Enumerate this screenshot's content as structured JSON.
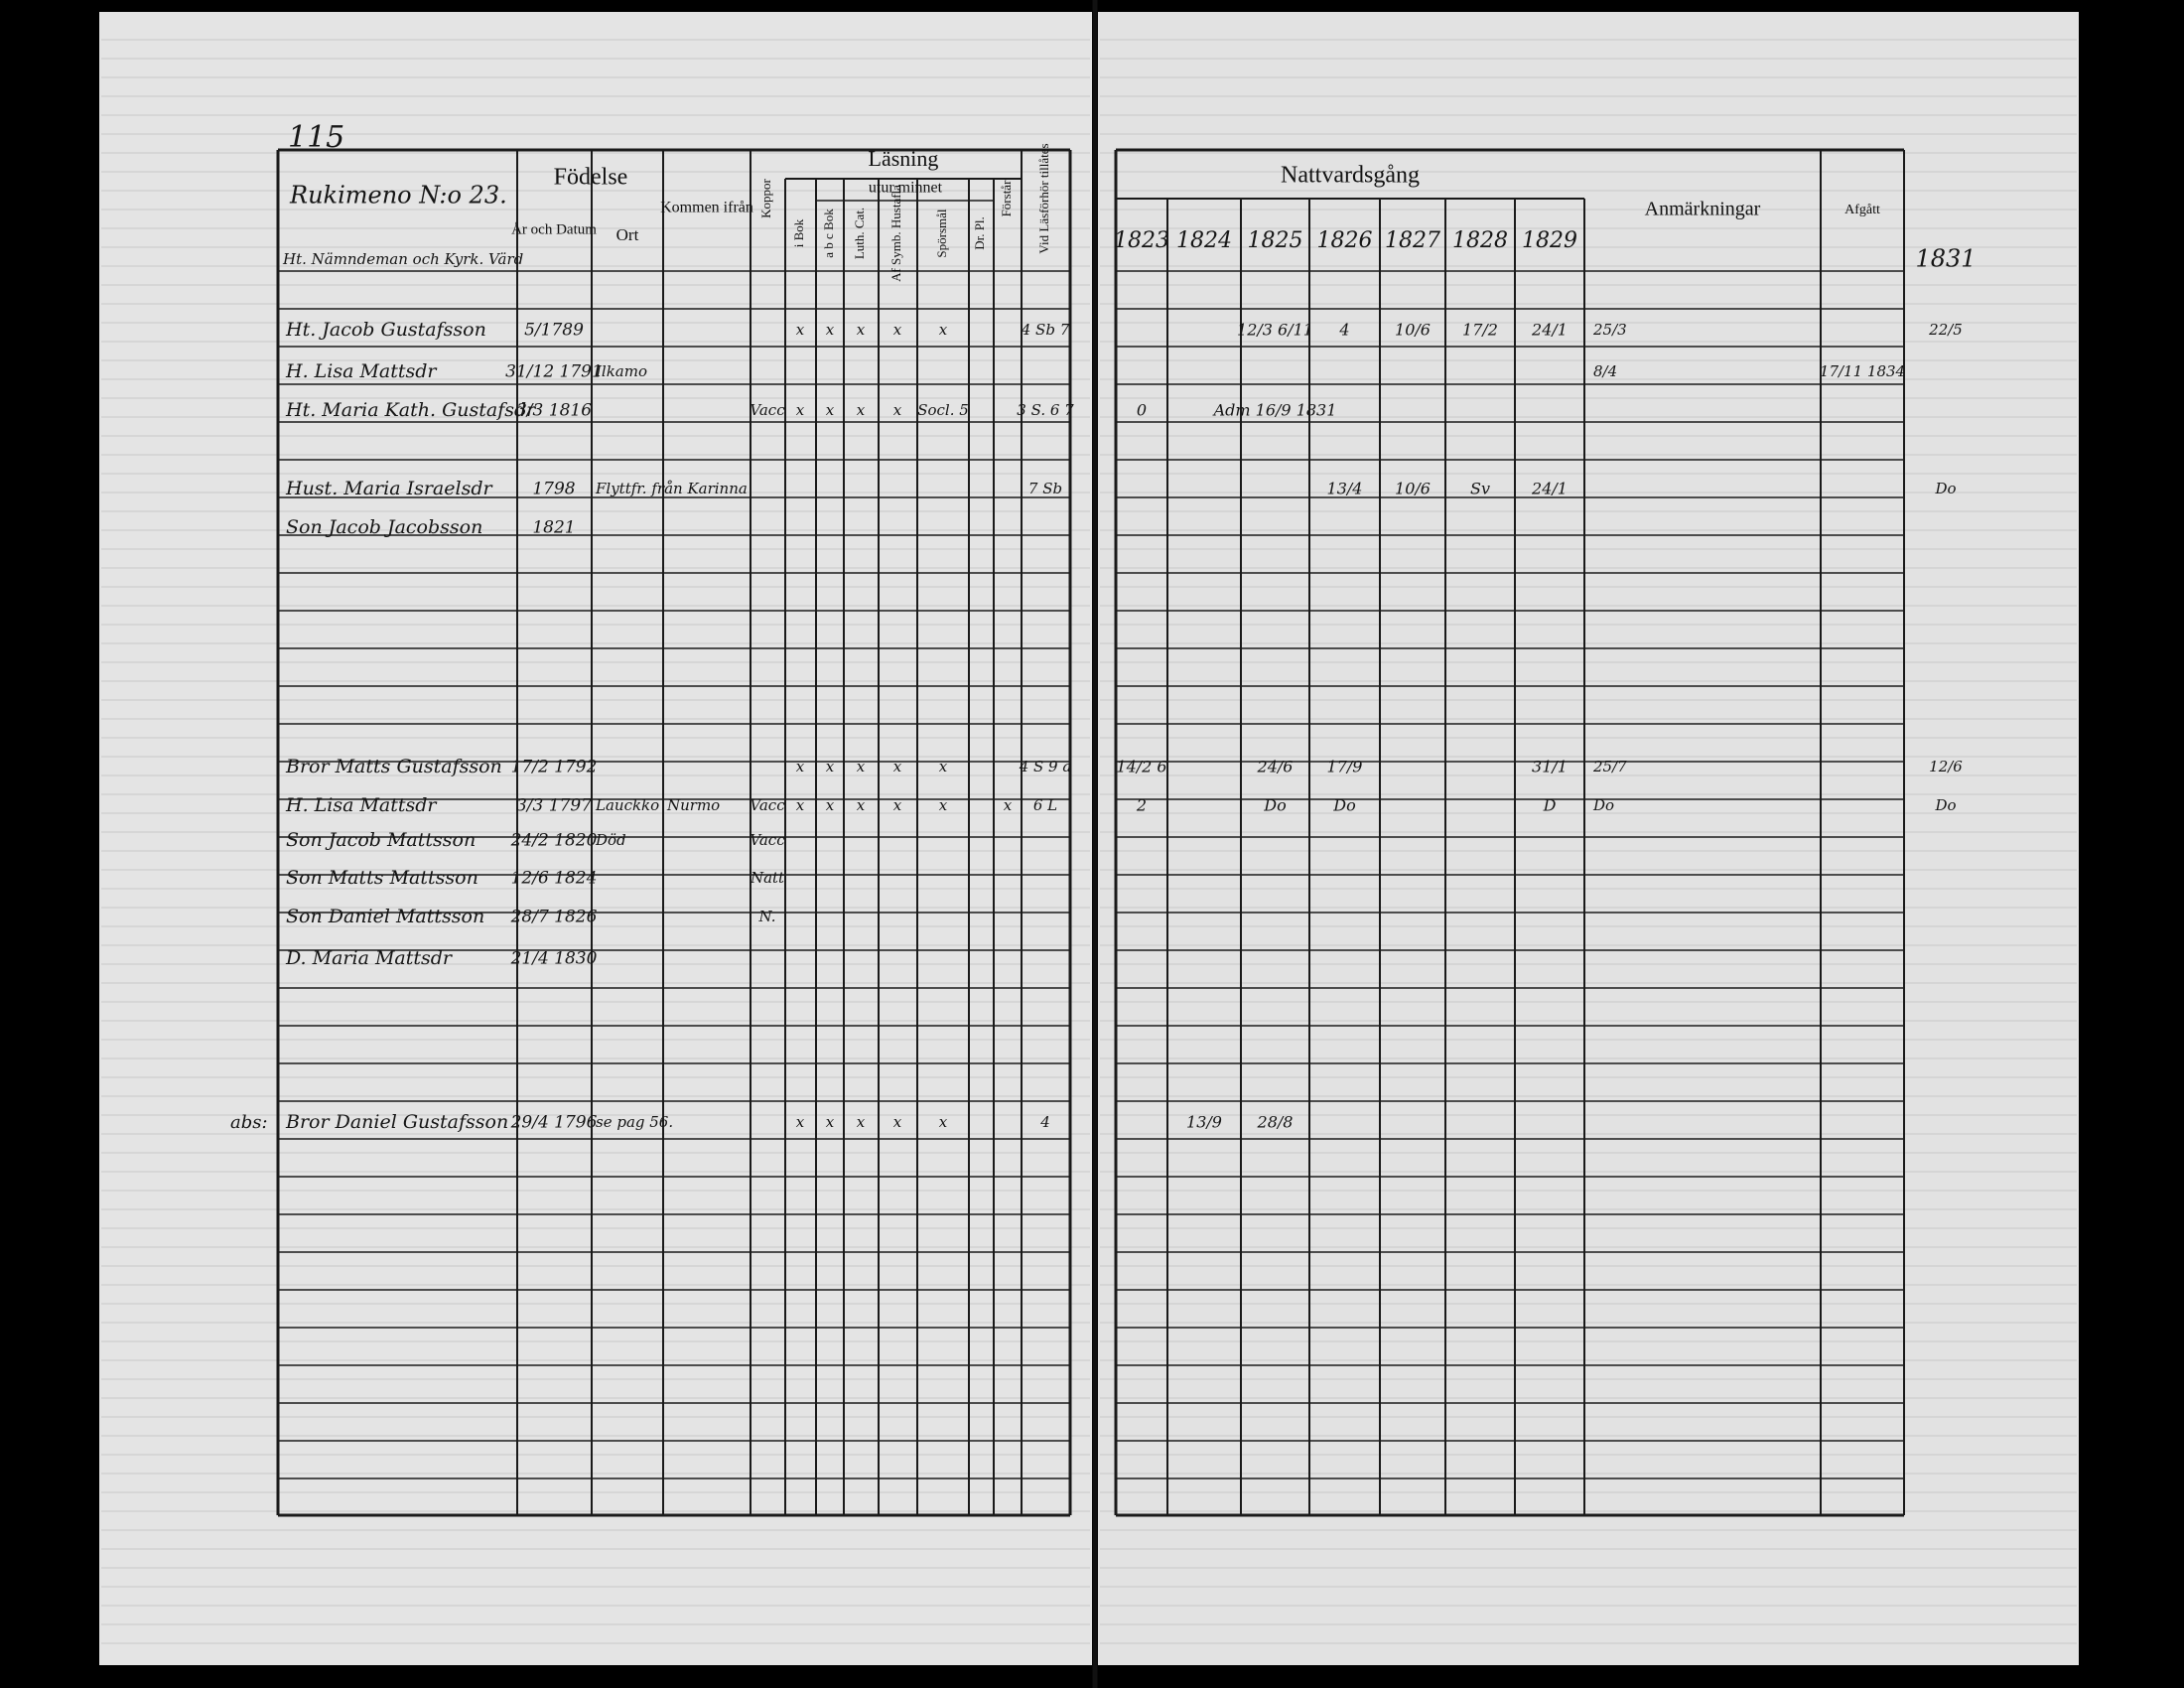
{
  "page_number": "115",
  "household": {
    "title": "Rukimeno N:o 23.",
    "subtitle": "Ht. Nämndeman och Kyrk. Värd"
  },
  "headers": {
    "birth": "Födelse",
    "birth_date": "År och Datum",
    "birth_place": "Ort",
    "origin": "Kommen ifrån",
    "pox": "Koppor",
    "reading": "Läsning",
    "by_heart": "utur minnet",
    "in_book": "i Bok",
    "abc": "a b c Bok",
    "catechism": "Luth. Cat.",
    "hustafla": "Af Symb. Hustafla",
    "questions": "Spörsmål",
    "plans": "Dr. Pl.",
    "understands": "Förstår",
    "allowed": "Vid Läsförhör tillåtes",
    "communion": "Nattvardsgång",
    "years": [
      "1823",
      "1824",
      "1825",
      "1826",
      "1827",
      "1828",
      "1829"
    ],
    "notes": "Anmärkningar",
    "departed": "Afgått",
    "margin_year": "1831"
  },
  "rows": [
    {
      "name": "Ht. Jacob Gustafsson",
      "birth": "5/1789",
      "in_book": "x",
      "abc": "x",
      "catechism": "x",
      "hustafla": "x",
      "questions": "x",
      "allowed": "4 Sb 7",
      "communion": {
        "1825": "12/3 6/11",
        "1826": "4",
        "1827": "10/6",
        "1828": "17/2",
        "1829": "24/1"
      },
      "notes": "25/3",
      "margin": "22/5"
    },
    {
      "name": "H. Lisa Mattsdr",
      "birth": "31/12 1791",
      "place": "Ilkamo",
      "notes": "8/4",
      "departed": "17/11 1834"
    },
    {
      "name": "Ht. Maria Kath. Gustafsdr",
      "birth": "3/3 1816",
      "pox": "Vacc",
      "in_book": "x",
      "abc": "x",
      "catechism": "x",
      "hustafla": "x",
      "questions": "Socl. 5",
      "allowed": "3 S. 6 7",
      "communion": {
        "1823": "0",
        "1825": "Adm 16/9 1831"
      }
    },
    {
      "name": "Hust. Maria Israelsdr",
      "birth": "1798",
      "place": "Flyttfr. från Karinna",
      "allowed": "7 Sb",
      "communion": {
        "1826": "13/4",
        "1827": "10/6",
        "1828": "Sv",
        "1829": "24/1"
      },
      "margin": "Do"
    },
    {
      "name": "Son Jacob Jacobsson",
      "birth": "1821"
    },
    {
      "name": "Bror Matts Gustafsson",
      "birth": "17/2 1792",
      "in_book": "x",
      "abc": "x",
      "catechism": "x",
      "hustafla": "x",
      "questions": "x",
      "allowed": "4 S 9 a",
      "communion": {
        "1823": "14/2 6",
        "1825": "24/6",
        "1826": "17/9",
        "1829": "31/1"
      },
      "notes": "25/7",
      "margin": "12/6"
    },
    {
      "name": "H. Lisa Mattsdr",
      "birth": "3/3 1797",
      "place": "Lauckko",
      "origin": "Nurmo",
      "pox": "Vacc",
      "in_book": "x",
      "abc": "x",
      "catechism": "x",
      "hustafla": "x",
      "questions": "x",
      "understands": "x",
      "allowed": "6 L",
      "communion": {
        "1823": "2",
        "1825": "Do",
        "1826": "Do",
        "1829": "D"
      },
      "notes": "Do",
      "margin": "Do"
    },
    {
      "name": "Son Jacob Mattsson",
      "birth": "24/2 1820",
      "place": "Död",
      "pox": "Vacc"
    },
    {
      "name": "Son Matts Mattsson",
      "birth": "12/6 1824",
      "pox": "Natt"
    },
    {
      "name": "Son Daniel Mattsson",
      "birth": "28/7 1826",
      "pox": "N."
    },
    {
      "name": "D. Maria Mattsdr",
      "birth": "21/4 1830"
    },
    {
      "prefix": "abs:",
      "name": "Bror Daniel Gustafsson",
      "birth": "29/4 1796",
      "place": "se pag 56.",
      "in_book": "x",
      "abc": "x",
      "catechism": "x",
      "hustafla": "x",
      "questions": "x",
      "allowed": "4",
      "communion": {
        "1824": "13/9",
        "1825": "28/8"
      }
    }
  ]
}
